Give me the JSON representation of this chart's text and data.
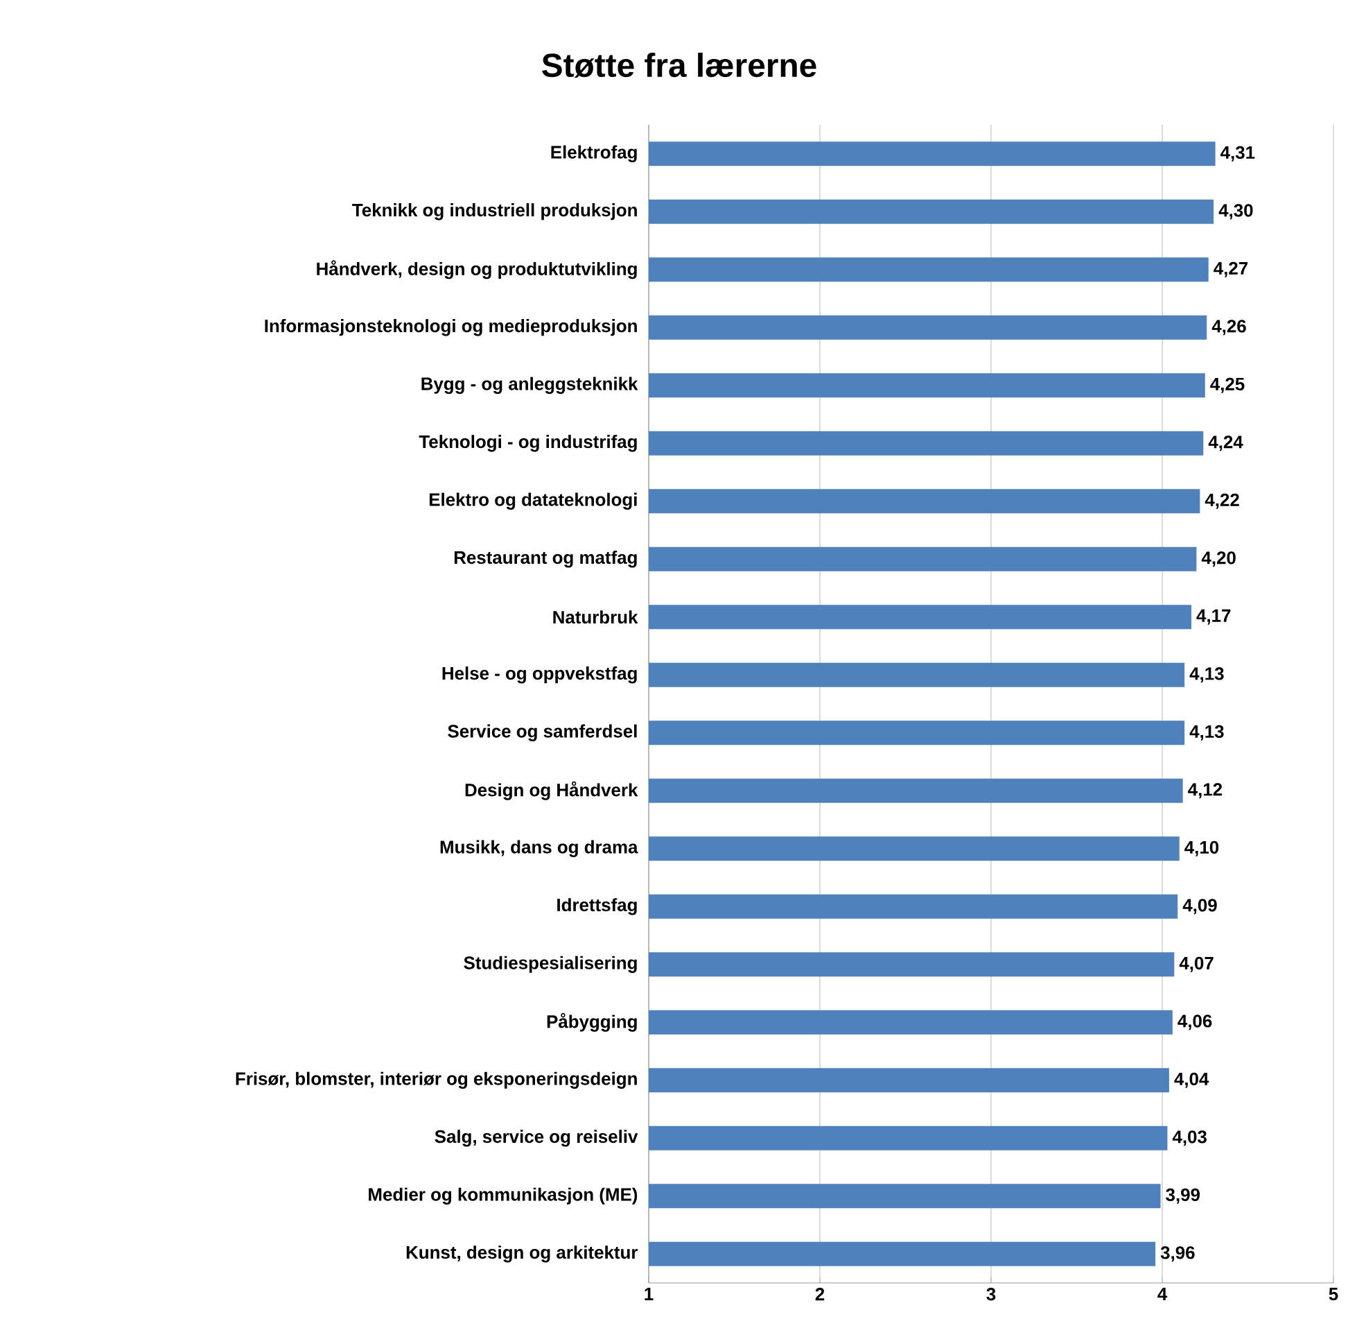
{
  "chart_data": {
    "type": "bar",
    "orientation": "horizontal",
    "title": "Støtte fra lærerne",
    "categories": [
      "Elektrofag",
      "Teknikk og industriell produksjon",
      "Håndverk, design og produktutvikling",
      "Informasjonsteknologi og medieproduksjon",
      "Bygg - og anleggsteknikk",
      "Teknologi - og industrifag",
      "Elektro og datateknologi",
      "Restaurant og matfag",
      "Naturbruk",
      "Helse - og oppvekstfag",
      "Service og samferdsel",
      "Design og Håndverk",
      "Musikk, dans og drama",
      "Idrettsfag",
      "Studiespesialisering",
      "Påbygging",
      "Frisør, blomster, interiør og eksponeringsdeign",
      "Salg, service og reiseliv",
      "Medier og kommunikasjon (ME)",
      "Kunst, design og arkitektur"
    ],
    "values": [
      4.31,
      4.3,
      4.27,
      4.26,
      4.25,
      4.24,
      4.22,
      4.2,
      4.17,
      4.13,
      4.13,
      4.12,
      4.1,
      4.09,
      4.07,
      4.06,
      4.04,
      4.03,
      3.99,
      3.96
    ],
    "value_labels": [
      "4,31",
      "4,30",
      "4,27",
      "4,26",
      "4,25",
      "4,24",
      "4,22",
      "4,20",
      "4,17",
      "4,13",
      "4,13",
      "4,12",
      "4,10",
      "4,09",
      "4,07",
      "4,06",
      "4,04",
      "4,03",
      "3,99",
      "3,96"
    ],
    "color": "#4f81bd",
    "xlim": [
      1,
      5
    ],
    "xticks": [
      1,
      2,
      3,
      4,
      5
    ],
    "grid": "x"
  }
}
